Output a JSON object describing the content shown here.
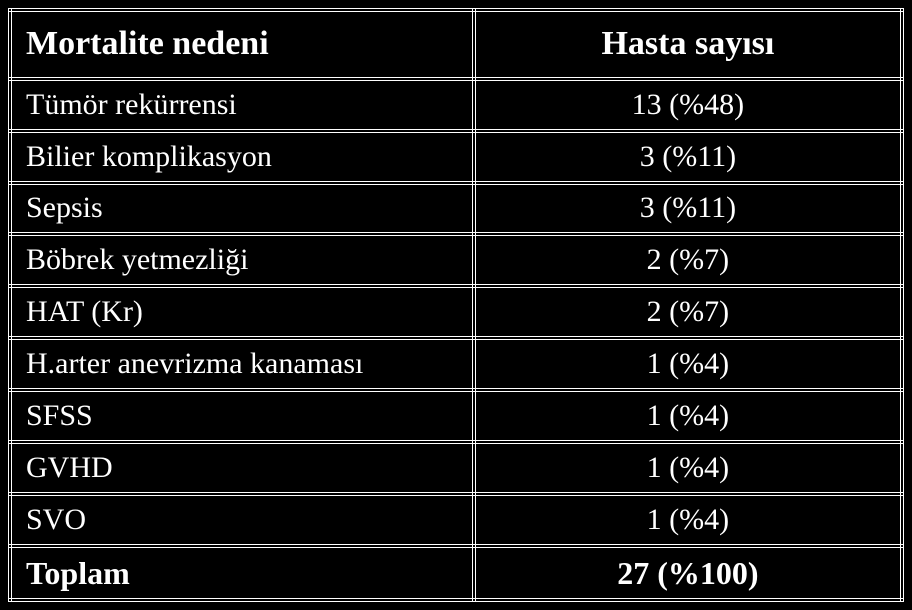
{
  "table": {
    "type": "table",
    "background_color": "#000000",
    "text_color": "#ffffff",
    "border_color": "#ffffff",
    "border_style": "double",
    "font_family": "Times New Roman",
    "header_fontsize": 34,
    "body_fontsize": 30,
    "columns": [
      {
        "label": "Mortalite nedeni",
        "align": "left",
        "width_pct": 52
      },
      {
        "label": "Hasta sayısı",
        "align": "center",
        "width_pct": 48
      }
    ],
    "rows": [
      {
        "cause": "Tümör rekürrensi",
        "count": "13 (%48)"
      },
      {
        "cause": "Bilier komplikasyon",
        "count": "3 (%11)"
      },
      {
        "cause": "Sepsis",
        "count": "3 (%11)"
      },
      {
        "cause": "Böbrek yetmezliği",
        "count": "2 (%7)"
      },
      {
        "cause": "HAT (Kr)",
        "count": "2 (%7)"
      },
      {
        "cause": "H.arter anevrizma kanaması",
        "count": "1 (%4)"
      },
      {
        "cause": "SFSS",
        "count": "1 (%4)"
      },
      {
        "cause": "GVHD",
        "count": "1 (%4)"
      },
      {
        "cause": "SVO",
        "count": "1 (%4)"
      }
    ],
    "total": {
      "cause": "Toplam",
      "count": "27 (%100)"
    }
  }
}
